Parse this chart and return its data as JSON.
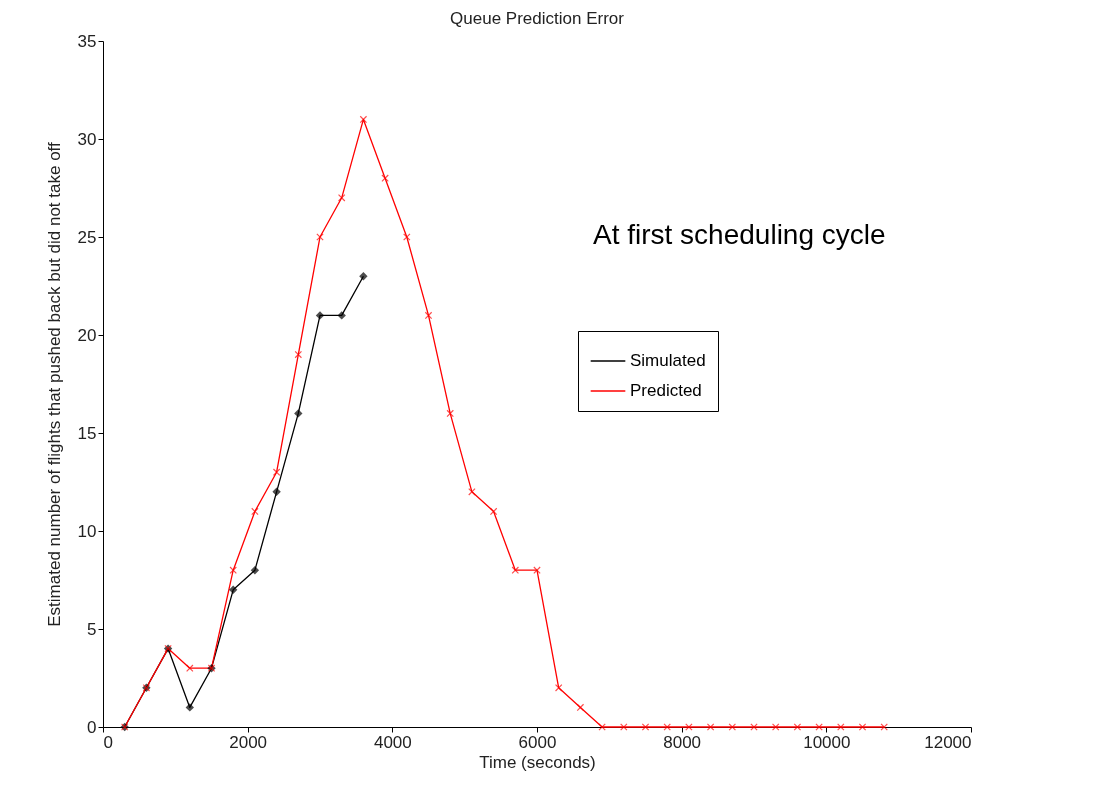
{
  "chart_data": {
    "type": "line",
    "title": "Queue Prediction Error",
    "xlabel": "Time (seconds)",
    "ylabel": "Estimated number of flights that pushed back but did not take off",
    "x": [
      300,
      600,
      900,
      1200,
      1500,
      1800,
      2100,
      2400,
      2700,
      3000,
      3300,
      3600,
      3900,
      4200,
      4500,
      4800,
      5100,
      5400,
      5700,
      6000,
      6300,
      6600,
      6900,
      7200,
      7500,
      7800,
      8100,
      8400,
      8700,
      9000,
      9300,
      9600,
      9900,
      10200,
      10500,
      10800
    ],
    "series": [
      {
        "name": "Simulated",
        "color": "#000000",
        "marker": "diamond",
        "values": [
          0,
          2,
          4,
          1,
          3,
          7,
          8,
          12,
          16,
          21,
          21,
          23,
          null,
          null,
          null,
          null,
          null,
          null,
          null,
          null,
          null,
          null,
          null,
          null,
          null,
          null,
          null,
          null,
          null,
          null,
          null,
          null,
          null,
          null,
          null,
          null
        ]
      },
      {
        "name": "Predicted",
        "color": "#ff0000",
        "marker": "cross",
        "values": [
          0,
          2,
          4,
          3,
          3,
          8,
          11,
          13,
          19,
          25,
          27,
          31,
          28,
          25,
          21,
          16,
          12,
          11,
          8,
          8,
          2,
          1,
          0,
          0,
          0,
          0,
          0,
          0,
          0,
          0,
          0,
          0,
          0,
          0,
          0,
          0
        ]
      }
    ],
    "xlim": [
      0,
      12000
    ],
    "xticks": [
      0,
      2000,
      4000,
      6000,
      8000,
      10000,
      12000
    ],
    "ylim": [
      0,
      35
    ],
    "yticks": [
      0,
      5,
      10,
      15,
      20,
      25,
      30,
      35
    ],
    "grid": false,
    "legend": "right",
    "line_style": "solid",
    "annotations": [
      "At first scheduling cycle"
    ]
  }
}
